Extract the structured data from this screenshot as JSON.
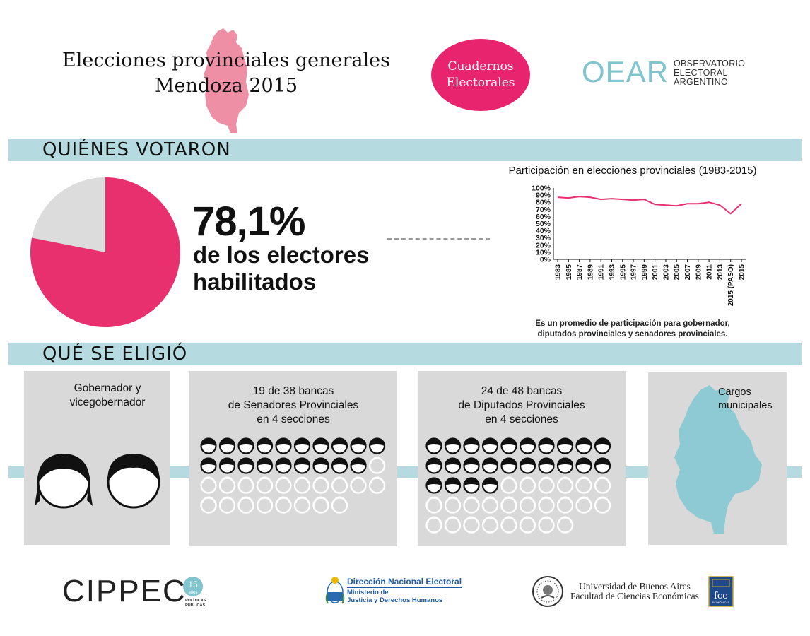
{
  "header": {
    "title_line1": "Elecciones provinciales generales",
    "title_line2": "Mendoza 2015",
    "badge_line1": "Cuadernos",
    "badge_line2": "Electorales",
    "oear_mark": "OEAR",
    "oear_line1": "OBSERVATORIO",
    "oear_line2": "ELECTORAL",
    "oear_line3": "ARGENTINO",
    "map_color": "#ef8fa5"
  },
  "section1": {
    "title": "QUIÉNES VOTARON",
    "turnout_pct": "78,1%",
    "turnout_value": 78.1,
    "turnout_line1": "de los electores",
    "turnout_line2": "habilitados",
    "pie_colors": {
      "voted": "#e8306f",
      "other": "#dcdcdc"
    }
  },
  "chart_data": {
    "type": "line",
    "title": "Participación en elecciones provinciales (1983-2015)",
    "x": [
      "1983",
      "1985",
      "1987",
      "1989",
      "1991",
      "1993",
      "1995",
      "1997",
      "1999",
      "2001",
      "2003",
      "2005",
      "2007",
      "2009",
      "2011",
      "2013",
      "2015 (PASO)",
      "2015"
    ],
    "y_ticks": [
      "100%",
      "90%",
      "80%",
      "70%",
      "60%",
      "50%",
      "40%",
      "30%",
      "20%",
      "10%",
      "0%"
    ],
    "ylim": [
      0,
      100
    ],
    "series": [
      {
        "values": [
          87,
          86,
          88,
          87,
          84,
          85,
          84,
          83,
          84,
          77,
          76,
          75,
          78,
          78,
          80,
          76,
          64,
          78
        ],
        "color": "#e8306f"
      }
    ],
    "note_line1": "Es un promedio de participación para gobernador,",
    "note_line2": "diputados provinciales y senadores provinciales."
  },
  "section2": {
    "title": "QUÉ SE ELIGIÓ",
    "gov_line1": "Gobernador y",
    "gov_line2": "vicegobernador",
    "sen_line1": "19 de 38 bancas",
    "sen_line2": "de Senadores Provinciales",
    "sen_line3": "en 4 secciones",
    "sen_total": 38,
    "sen_elected": 19,
    "dip_line1": "24 de 48 bancas",
    "dip_line2": "de Diputados Provinciales",
    "dip_line3": "en 4 secciones",
    "dip_total": 48,
    "dip_elected": 24,
    "mun_line1": "Cargos",
    "mun_line2": "municipales",
    "accent": "#b5dbe1",
    "map_color": "#8ecad3"
  },
  "footer": {
    "cippec": "CIPPEC",
    "cippec_badge_num": "15",
    "cippec_badge_word": "años",
    "cippec_sub1": "POLÍTICAS",
    "cippec_sub2": "PÚBLICAS",
    "dne_title": "Dirección Nacional Electoral",
    "dne_line1": "Ministerio de",
    "dne_line2": "Justicia y Derechos Humanos",
    "uba_line1": "Universidad de Buenos Aires",
    "uba_line2": "Facultad de Ciencias Económicas",
    "fce": "fce",
    "fce_sub": "ECONÓMICAS"
  }
}
